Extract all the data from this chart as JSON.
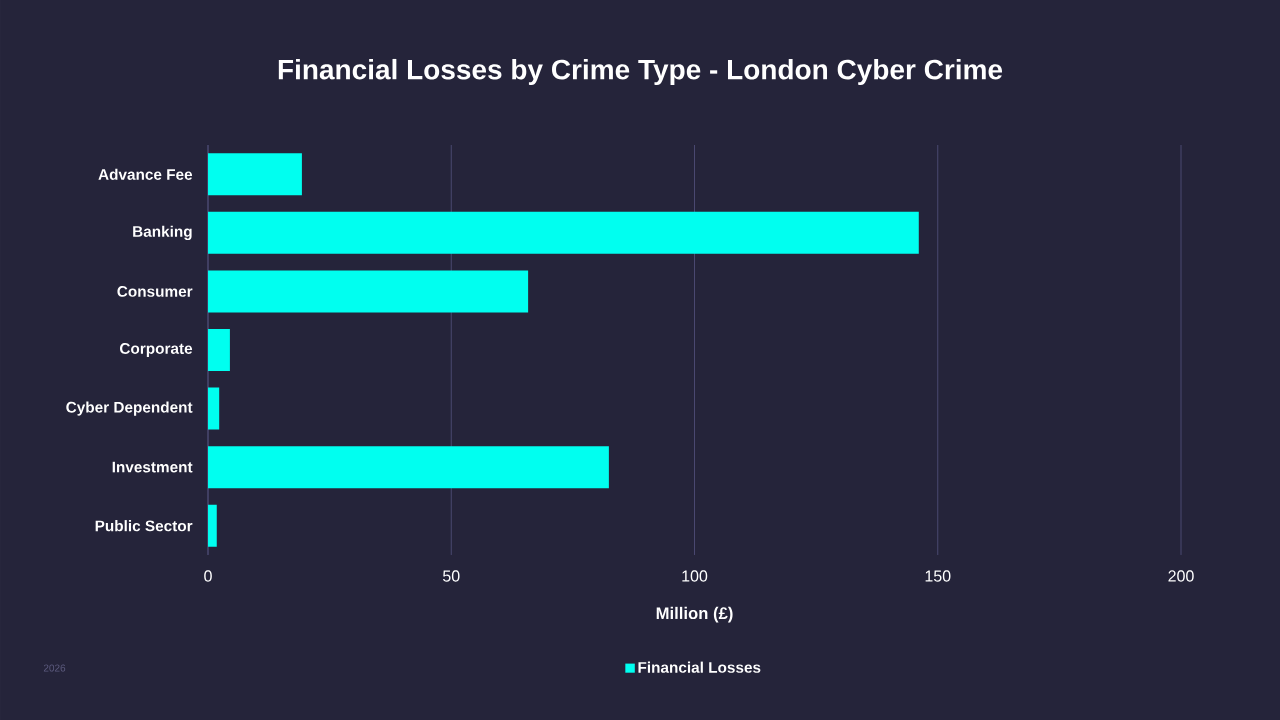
{
  "chart_data": {
    "type": "bar",
    "orientation": "horizontal",
    "title": "Financial Losses by Crime Type - London Cyber Crime",
    "xlabel": "Million (£)",
    "categories": [
      "Advance Fee",
      "Banking",
      "Consumer",
      "Corporate",
      "Cyber Dependent",
      "Investment",
      "Public Sector"
    ],
    "series": [
      {
        "name": "Financial Losses",
        "color": "#00fff0",
        "values": [
          19.3,
          146.1,
          65.8,
          4.5,
          2.3,
          82.4,
          1.8
        ]
      }
    ],
    "xlim": [
      0,
      200
    ],
    "xticks": [
      0,
      50,
      100,
      150,
      200
    ],
    "grid": "x",
    "legend": "bottom",
    "annotations": [
      "2026"
    ]
  }
}
